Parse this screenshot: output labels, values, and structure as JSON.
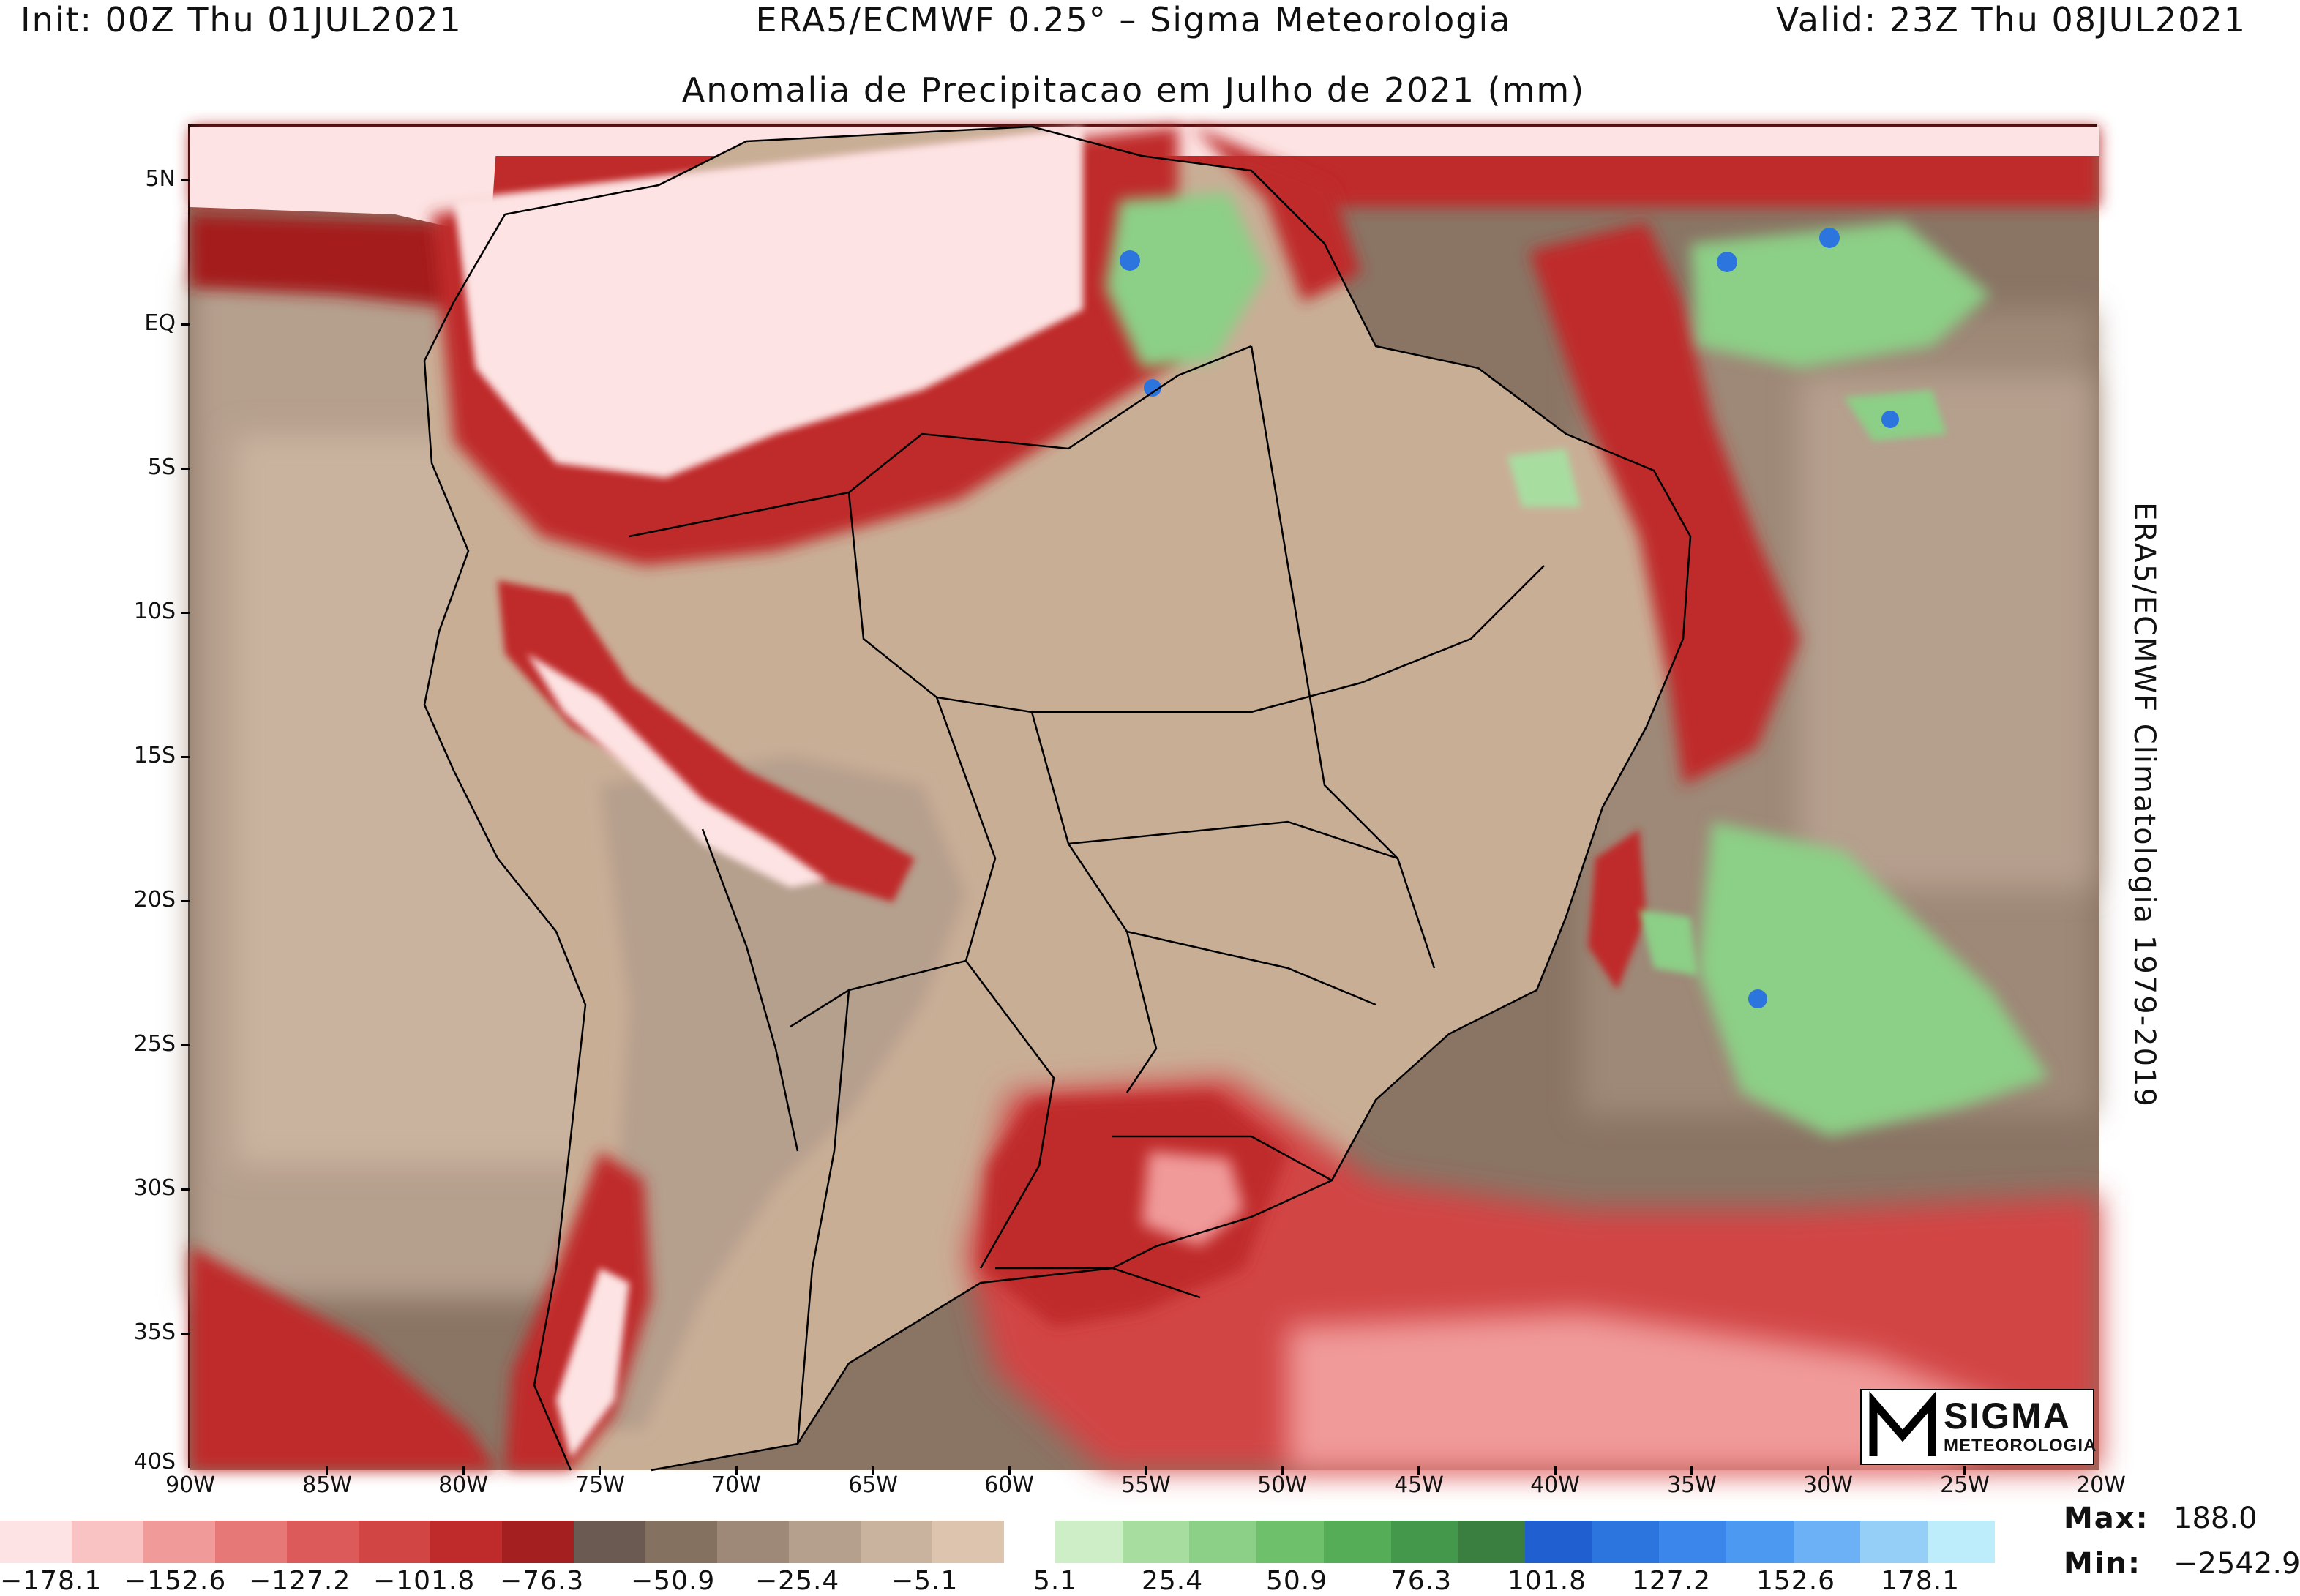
{
  "header": {
    "init": "Init: 00Z Thu 01JUL2021",
    "model": "ERA5/ECMWF 0.25° – Sigma Meteorologia",
    "valid": "Valid: 23Z Thu 08JUL2021"
  },
  "title": "Anomalia de Precipitacao em Julho de 2021 (mm)",
  "side_title": "ERA5/ECMWF Climatologia 1979-2019",
  "axes": {
    "lat_labels": [
      "5N",
      "EQ",
      "5S",
      "10S",
      "15S",
      "20S",
      "25S",
      "30S",
      "35S",
      "40S"
    ],
    "lon_labels": [
      "90W",
      "85W",
      "80W",
      "75W",
      "70W",
      "65W",
      "60W",
      "55W",
      "50W",
      "45W",
      "40W",
      "35W",
      "30W",
      "25W",
      "20W"
    ],
    "lat_range": [
      -40,
      5.5
    ],
    "lon_range": [
      -90,
      -20
    ]
  },
  "colorbar": {
    "negative": {
      "colors": [
        "#fde3e3",
        "#f9c3c3",
        "#f09a9a",
        "#e67878",
        "#dd5a5a",
        "#d24545",
        "#bf2a2a",
        "#a41f1f",
        "#6b5a52",
        "#85715f",
        "#9e8877",
        "#b59f8d",
        "#c9b29e",
        "#dcc4ae"
      ],
      "labels": [
        "−178.1",
        "−152.6",
        "−127.2",
        "−101.8",
        "−76.3",
        "−50.9",
        "−25.4",
        "−5.1"
      ]
    },
    "positive": {
      "colors": [
        "#cdeec7",
        "#a8dda0",
        "#8ccf86",
        "#6fc06b",
        "#55ad58",
        "#43984b",
        "#3a7f3f",
        "#1f5fd0",
        "#2c74de",
        "#3a86ea",
        "#4b99f1",
        "#6cb0f5",
        "#95cff8",
        "#bdecfb"
      ],
      "labels": [
        "5.1",
        "25.4",
        "50.9",
        "76.3",
        "101.8",
        "127.2",
        "152.6",
        "178.1"
      ]
    }
  },
  "stats": {
    "max_label": "Max:",
    "max_value": "188.0",
    "min_label": "Min:",
    "min_value": "−2542.9"
  },
  "logo": {
    "word": "SIGMA",
    "sub": "METEOROLOGIA"
  },
  "field_colors": {
    "ocean_base": "#8a7464",
    "land_dry": "#c9ae96",
    "strong_neg": "#bf2a2a",
    "extreme_neg": "#fde3e3",
    "positive": "#8ccf86"
  }
}
